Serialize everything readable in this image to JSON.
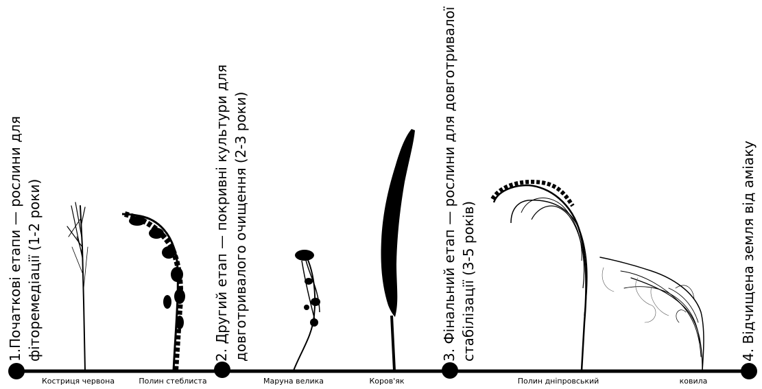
{
  "stages": [
    {
      "line1": "1.Початкові етапи — рослини для",
      "line2": "фіторемедіації (1-2 роки)"
    },
    {
      "line1": "2. Другий етап — покривні культури для",
      "line2": "довготривалого очищення (2-3 роки)"
    },
    {
      "line1": "3. Фінальний етап — рослини для довготривалої",
      "line2": "стабілізації (3-5 років)"
    },
    {
      "line1": "4. Відчищена земля від аміаку",
      "line2": ""
    }
  ],
  "plants": [
    {
      "name": "Костриця червона",
      "icon": "fescue-plant-icon"
    },
    {
      "name": "Полин стеблиста",
      "icon": "wormwood-plant-icon"
    },
    {
      "name": "Маруна велика",
      "icon": "tansy-plant-icon"
    },
    {
      "name": "Коров'як",
      "icon": "mullein-plant-icon"
    },
    {
      "name": "Полин дніпровський",
      "icon": "dnieper-wormwood-plant-icon"
    },
    {
      "name": "ковила",
      "icon": "feather-grass-plant-icon"
    }
  ],
  "colors": {
    "line": "#000000",
    "background": "#ffffff"
  }
}
